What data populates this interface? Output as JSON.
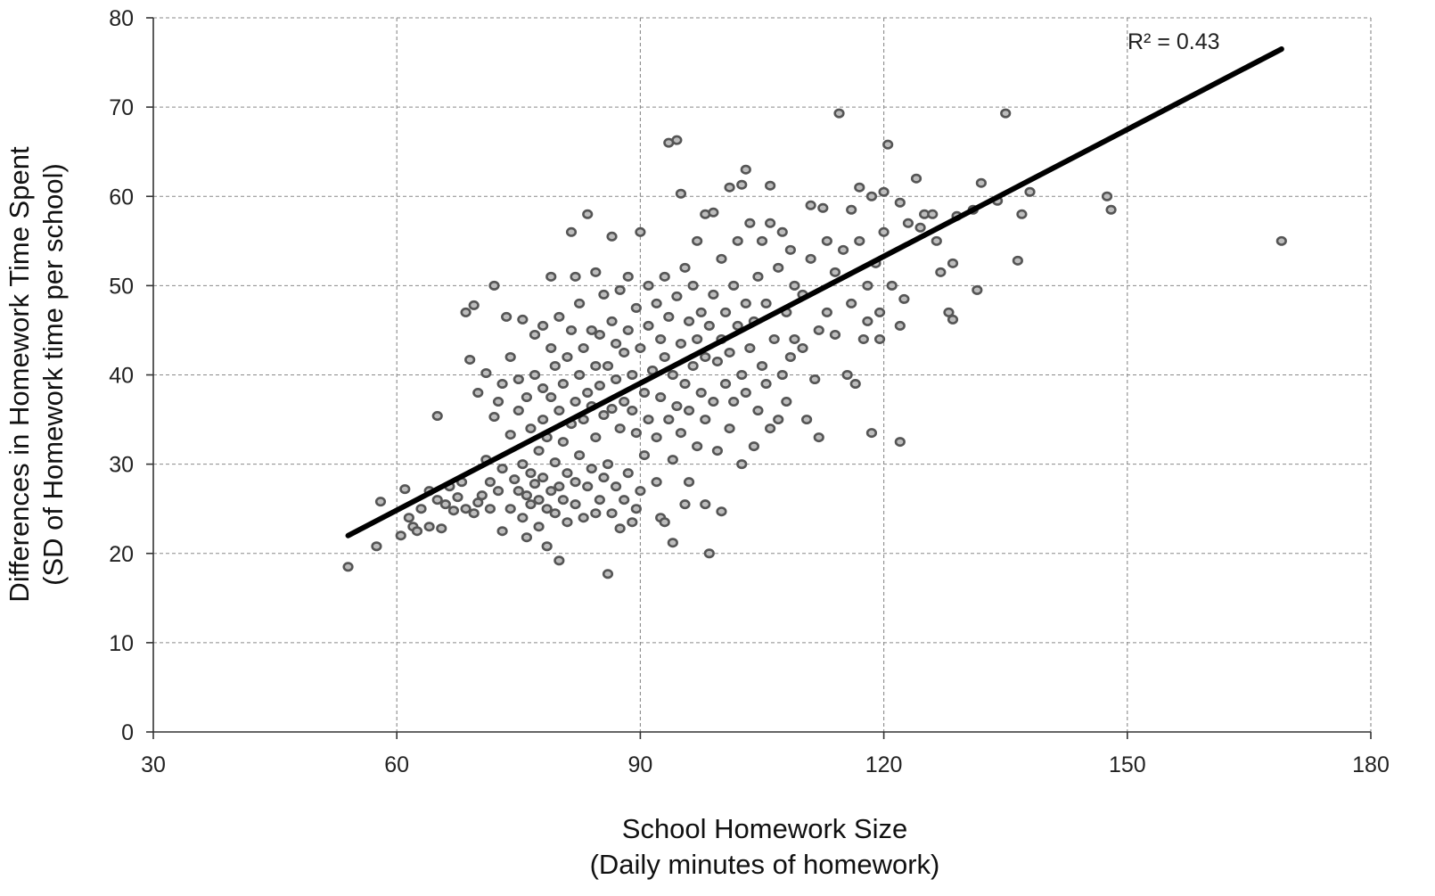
{
  "chart_data": {
    "type": "scatter",
    "xlabel": [
      "School Homework Size",
      "(Daily minutes of homework)"
    ],
    "ylabel": [
      "Differences in Homework Time Spent",
      "(SD of Homework time per school)"
    ],
    "xlim": [
      30,
      180
    ],
    "ylim": [
      0,
      80
    ],
    "xticks": [
      30,
      60,
      90,
      120,
      150,
      180
    ],
    "yticks": [
      0,
      10,
      20,
      30,
      40,
      50,
      60,
      70,
      80
    ],
    "grid": true,
    "annotation": "R² = 0.43",
    "trendline": {
      "x": [
        54,
        169
      ],
      "y": [
        22.0,
        76.5
      ]
    },
    "points": [
      [
        54,
        18.5
      ],
      [
        57.5,
        20.8
      ],
      [
        58,
        25.8
      ],
      [
        60.5,
        22
      ],
      [
        61,
        27.2
      ],
      [
        61.5,
        24
      ],
      [
        62,
        23
      ],
      [
        62.5,
        22.5
      ],
      [
        63,
        25
      ],
      [
        64,
        27
      ],
      [
        64,
        23
      ],
      [
        65,
        26
      ],
      [
        65,
        35.4
      ],
      [
        65.5,
        22.8
      ],
      [
        66,
        25.5
      ],
      [
        66.5,
        27.5
      ],
      [
        67,
        24.8
      ],
      [
        67.5,
        26.3
      ],
      [
        68,
        28
      ],
      [
        68.5,
        25
      ],
      [
        68.5,
        47
      ],
      [
        69,
        41.7
      ],
      [
        69.5,
        24.5
      ],
      [
        69.5,
        47.8
      ],
      [
        70,
        25.7
      ],
      [
        70,
        38
      ],
      [
        70.5,
        26.5
      ],
      [
        71,
        30.5
      ],
      [
        71,
        40.2
      ],
      [
        71.5,
        25
      ],
      [
        71.5,
        28
      ],
      [
        72,
        35.3
      ],
      [
        72,
        50
      ],
      [
        72.5,
        27
      ],
      [
        72.5,
        37
      ],
      [
        73,
        22.5
      ],
      [
        73,
        29.5
      ],
      [
        73,
        39
      ],
      [
        73.5,
        46.5
      ],
      [
        74,
        25
      ],
      [
        74,
        33.3
      ],
      [
        74,
        42
      ],
      [
        74.5,
        28.3
      ],
      [
        75,
        27
      ],
      [
        75,
        36
      ],
      [
        75,
        39.5
      ],
      [
        75.5,
        24
      ],
      [
        75.5,
        30
      ],
      [
        75.5,
        46.2
      ],
      [
        76,
        21.8
      ],
      [
        76,
        26.5
      ],
      [
        76,
        37.5
      ],
      [
        76.5,
        25.5
      ],
      [
        76.5,
        29
      ],
      [
        76.5,
        34
      ],
      [
        77,
        27.8
      ],
      [
        77,
        40
      ],
      [
        77,
        44.5
      ],
      [
        77.5,
        23
      ],
      [
        77.5,
        26
      ],
      [
        77.5,
        31.5
      ],
      [
        78,
        28.5
      ],
      [
        78,
        35
      ],
      [
        78,
        38.5
      ],
      [
        78,
        45.5
      ],
      [
        78.5,
        20.8
      ],
      [
        78.5,
        25
      ],
      [
        78.5,
        33
      ],
      [
        79,
        27
      ],
      [
        79,
        37.5
      ],
      [
        79,
        43
      ],
      [
        79,
        51
      ],
      [
        79.5,
        24.5
      ],
      [
        79.5,
        30.2
      ],
      [
        79.5,
        41
      ],
      [
        80,
        19.2
      ],
      [
        80,
        27.5
      ],
      [
        80,
        36
      ],
      [
        80,
        46.5
      ],
      [
        80.5,
        26
      ],
      [
        80.5,
        32.5
      ],
      [
        80.5,
        39
      ],
      [
        81,
        23.5
      ],
      [
        81,
        29
      ],
      [
        81,
        42
      ],
      [
        81.5,
        34.5
      ],
      [
        81.5,
        45
      ],
      [
        81.5,
        56
      ],
      [
        82,
        25.5
      ],
      [
        82,
        28
      ],
      [
        82,
        37
      ],
      [
        82,
        51
      ],
      [
        82.5,
        31
      ],
      [
        82.5,
        40
      ],
      [
        82.5,
        48
      ],
      [
        83,
        24
      ],
      [
        83,
        35
      ],
      [
        83,
        43
      ],
      [
        83.5,
        27.5
      ],
      [
        83.5,
        38
      ],
      [
        83.5,
        58
      ],
      [
        84,
        29.5
      ],
      [
        84,
        36.5
      ],
      [
        84,
        45
      ],
      [
        84.5,
        24.5
      ],
      [
        84.5,
        33
      ],
      [
        84.5,
        41
      ],
      [
        84.5,
        51.5
      ],
      [
        85,
        26
      ],
      [
        85,
        38.8
      ],
      [
        85,
        44.5
      ],
      [
        85.5,
        28.5
      ],
      [
        85.5,
        35.5
      ],
      [
        85.5,
        49
      ],
      [
        86,
        17.7
      ],
      [
        86,
        30
      ],
      [
        86,
        41
      ],
      [
        86.5,
        24.5
      ],
      [
        86.5,
        36.2
      ],
      [
        86.5,
        46
      ],
      [
        86.5,
        55.5
      ],
      [
        87,
        27.5
      ],
      [
        87,
        39.5
      ],
      [
        87,
        43.5
      ],
      [
        87.5,
        22.8
      ],
      [
        87.5,
        34
      ],
      [
        87.5,
        49.5
      ],
      [
        88,
        26
      ],
      [
        88,
        37
      ],
      [
        88,
        42.5
      ],
      [
        88.5,
        29
      ],
      [
        88.5,
        45
      ],
      [
        88.5,
        51
      ],
      [
        89,
        23.5
      ],
      [
        89,
        36
      ],
      [
        89,
        40
      ],
      [
        89.5,
        25
      ],
      [
        89.5,
        33.5
      ],
      [
        89.5,
        47.5
      ],
      [
        90,
        27
      ],
      [
        90,
        43
      ],
      [
        90,
        56
      ],
      [
        90.5,
        31
      ],
      [
        90.5,
        38
      ],
      [
        91,
        35
      ],
      [
        91,
        45.5
      ],
      [
        91,
        50
      ],
      [
        91.5,
        40.5
      ],
      [
        92,
        28
      ],
      [
        92,
        33
      ],
      [
        92,
        48
      ],
      [
        92.5,
        24
      ],
      [
        92.5,
        37.5
      ],
      [
        92.5,
        44
      ],
      [
        93,
        23.5
      ],
      [
        93,
        42
      ],
      [
        93,
        51
      ],
      [
        93.5,
        35
      ],
      [
        93.5,
        46.5
      ],
      [
        93.5,
        66
      ],
      [
        94,
        21.2
      ],
      [
        94,
        30.5
      ],
      [
        94,
        40
      ],
      [
        94.5,
        36.5
      ],
      [
        94.5,
        48.8
      ],
      [
        94.5,
        66.3
      ],
      [
        95,
        33.5
      ],
      [
        95,
        43.5
      ],
      [
        95,
        60.3
      ],
      [
        95.5,
        25.5
      ],
      [
        95.5,
        39
      ],
      [
        95.5,
        52
      ],
      [
        96,
        28
      ],
      [
        96,
        36
      ],
      [
        96,
        46
      ],
      [
        96.5,
        41
      ],
      [
        96.5,
        50
      ],
      [
        97,
        32
      ],
      [
        97,
        44
      ],
      [
        97,
        55
      ],
      [
        97.5,
        38
      ],
      [
        97.5,
        47
      ],
      [
        98,
        25.5
      ],
      [
        98,
        35
      ],
      [
        98,
        42
      ],
      [
        98,
        58
      ],
      [
        98.5,
        20
      ],
      [
        98.5,
        45.5
      ],
      [
        99,
        37
      ],
      [
        99,
        49
      ],
      [
        99,
        58.2
      ],
      [
        99.5,
        31.5
      ],
      [
        99.5,
        41.5
      ],
      [
        100,
        24.7
      ],
      [
        100,
        44
      ],
      [
        100,
        53
      ],
      [
        100.5,
        39
      ],
      [
        100.5,
        47
      ],
      [
        101,
        34
      ],
      [
        101,
        42.5
      ],
      [
        101,
        61
      ],
      [
        101.5,
        37
      ],
      [
        101.5,
        50
      ],
      [
        102,
        45.5
      ],
      [
        102,
        55
      ],
      [
        102.5,
        30
      ],
      [
        102.5,
        40
      ],
      [
        102.5,
        61.3
      ],
      [
        103,
        38
      ],
      [
        103,
        48
      ],
      [
        103,
        63
      ],
      [
        103.5,
        43
      ],
      [
        103.5,
        57
      ],
      [
        104,
        32
      ],
      [
        104,
        46
      ],
      [
        104.5,
        36
      ],
      [
        104.5,
        51
      ],
      [
        105,
        41
      ],
      [
        105,
        55
      ],
      [
        105.5,
        39
      ],
      [
        105.5,
        48
      ],
      [
        106,
        34
      ],
      [
        106,
        57
      ],
      [
        106,
        61.2
      ],
      [
        106.5,
        44
      ],
      [
        107,
        35
      ],
      [
        107,
        52
      ],
      [
        107.5,
        40
      ],
      [
        107.5,
        56
      ],
      [
        108,
        37
      ],
      [
        108,
        47
      ],
      [
        108.5,
        42
      ],
      [
        108.5,
        54
      ],
      [
        109,
        44
      ],
      [
        109,
        50
      ],
      [
        110,
        43
      ],
      [
        110,
        49
      ],
      [
        110.5,
        35
      ],
      [
        111,
        59
      ],
      [
        111,
        53
      ],
      [
        111.5,
        39.5
      ],
      [
        112,
        33
      ],
      [
        112,
        45
      ],
      [
        112.5,
        58.7
      ],
      [
        113,
        47
      ],
      [
        113,
        55
      ],
      [
        114,
        44.5
      ],
      [
        114,
        51.5
      ],
      [
        114.5,
        69.3
      ],
      [
        115,
        54
      ],
      [
        115.5,
        40
      ],
      [
        116,
        48
      ],
      [
        116,
        58.5
      ],
      [
        116.5,
        39
      ],
      [
        117,
        55
      ],
      [
        117,
        61
      ],
      [
        117.5,
        44
      ],
      [
        118,
        46
      ],
      [
        118,
        50
      ],
      [
        118.5,
        33.5
      ],
      [
        118.5,
        60
      ],
      [
        119,
        52.5
      ],
      [
        119.5,
        47
      ],
      [
        119.5,
        44
      ],
      [
        120,
        60.5
      ],
      [
        120,
        56
      ],
      [
        120.5,
        65.8
      ],
      [
        121,
        50
      ],
      [
        122,
        59.3
      ],
      [
        122,
        32.5
      ],
      [
        122,
        45.5
      ],
      [
        122.5,
        48.5
      ],
      [
        123,
        57
      ],
      [
        124,
        62
      ],
      [
        124.5,
        56.5
      ],
      [
        125,
        58
      ],
      [
        126,
        58
      ],
      [
        126.5,
        55
      ],
      [
        127,
        51.5
      ],
      [
        128,
        47
      ],
      [
        128.5,
        52.5
      ],
      [
        128.5,
        46.2
      ],
      [
        129,
        57.8
      ],
      [
        131,
        58.5
      ],
      [
        131.5,
        49.5
      ],
      [
        132,
        61.5
      ],
      [
        134,
        59.5
      ],
      [
        135,
        69.3
      ],
      [
        136.5,
        52.8
      ],
      [
        137,
        58
      ],
      [
        138,
        60.5
      ],
      [
        147.5,
        60
      ],
      [
        148,
        58.5
      ],
      [
        169,
        55
      ]
    ]
  }
}
